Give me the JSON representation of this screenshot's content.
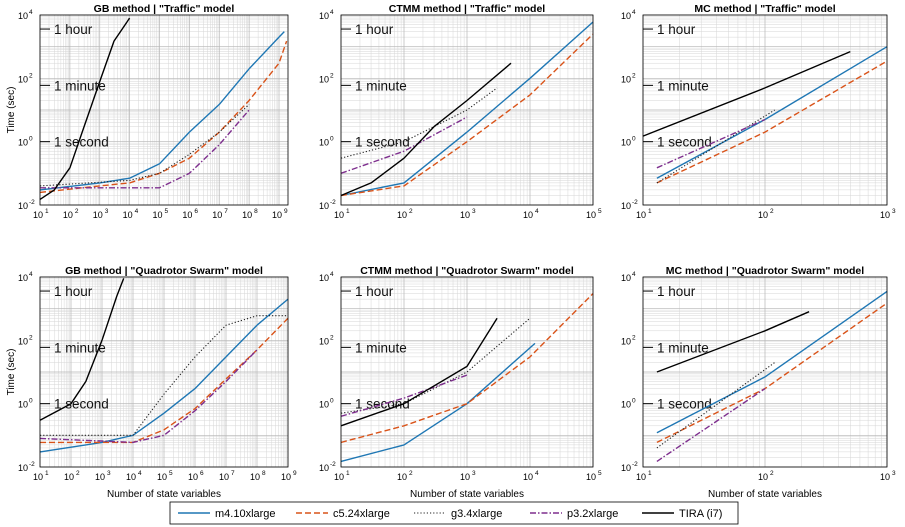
{
  "series_styles": [
    {
      "name": "m4.10xlarge",
      "color": "#1f77b4",
      "dash": "",
      "width": 1.4
    },
    {
      "name": "c5.24xlarge",
      "color": "#d95319",
      "dash": "6,3",
      "width": 1.4
    },
    {
      "name": "g3.4xlarge",
      "color": "#222222",
      "dash": "1.2,2",
      "width": 1.1
    },
    {
      "name": "p3.2xlarge",
      "color": "#7e2f8e",
      "dash": "6,2,1.5,2",
      "width": 1.4
    },
    {
      "name": "TIRA (i7)",
      "color": "#000000",
      "dash": "",
      "width": 1.4
    }
  ],
  "time_annotations": [
    "1 hour",
    "1 minute",
    "1 second"
  ],
  "chart_data": [
    {
      "type": "line",
      "title": "GB method | \"Traffic\" model",
      "xlabel": "",
      "ylabel": "Time (sec)",
      "xscale": "log",
      "yscale": "log",
      "xlim": [
        10,
        2000000000
      ],
      "ylim": [
        0.01,
        10000
      ],
      "grid": true,
      "series": [
        {
          "name": "m4.10xlarge",
          "x": [
            10,
            1000,
            10000,
            100000,
            1000000,
            10000000,
            100000000,
            1000000000,
            1500000000
          ],
          "y": [
            0.03,
            0.05,
            0.07,
            0.2,
            2,
            15,
            200,
            2000,
            3000
          ]
        },
        {
          "name": "c5.24xlarge",
          "x": [
            10,
            1000,
            10000,
            100000,
            1000000,
            10000000,
            100000000,
            1000000000,
            1800000000
          ],
          "y": [
            0.025,
            0.04,
            0.05,
            0.1,
            0.3,
            2,
            20,
            300,
            1500
          ]
        },
        {
          "name": "g3.4xlarge",
          "x": [
            10,
            10000,
            100000,
            1000000,
            10000000,
            100000000
          ],
          "y": [
            0.04,
            0.06,
            0.1,
            0.4,
            2,
            15
          ]
        },
        {
          "name": "p3.2xlarge",
          "x": [
            10,
            10000,
            100000,
            1000000,
            10000000,
            100000000
          ],
          "y": [
            0.035,
            0.035,
            0.035,
            0.1,
            0.8,
            10
          ]
        },
        {
          "name": "TIRA (i7)",
          "x": [
            10,
            30,
            100,
            300,
            1000,
            3000,
            10000
          ],
          "y": [
            0.015,
            0.03,
            0.15,
            3,
            80,
            1500,
            8000
          ]
        }
      ]
    },
    {
      "type": "line",
      "title": "CTMM method | \"Traffic\" model",
      "xlabel": "",
      "ylabel": "",
      "xscale": "log",
      "yscale": "log",
      "xlim": [
        10,
        100000
      ],
      "ylim": [
        0.01,
        10000
      ],
      "grid": true,
      "series": [
        {
          "name": "m4.10xlarge",
          "x": [
            10,
            100,
            1000,
            10000,
            100000
          ],
          "y": [
            0.02,
            0.05,
            2,
            100,
            6000
          ]
        },
        {
          "name": "c5.24xlarge",
          "x": [
            10,
            100,
            1000,
            10000,
            100000
          ],
          "y": [
            0.02,
            0.04,
            1,
            30,
            2500
          ]
        },
        {
          "name": "g3.4xlarge",
          "x": [
            10,
            100,
            1000,
            3000
          ],
          "y": [
            0.3,
            1,
            10,
            50
          ]
        },
        {
          "name": "p3.2xlarge",
          "x": [
            10,
            100,
            1000
          ],
          "y": [
            0.1,
            0.5,
            6
          ]
        },
        {
          "name": "TIRA (i7)",
          "x": [
            10,
            30,
            100,
            300,
            1000,
            5000
          ],
          "y": [
            0.02,
            0.05,
            0.3,
            3,
            20,
            300
          ]
        }
      ]
    },
    {
      "type": "line",
      "title": "MC method | \"Traffic\" model",
      "xlabel": "",
      "ylabel": "",
      "xscale": "log",
      "yscale": "log",
      "xlim": [
        10,
        1000
      ],
      "ylim": [
        0.01,
        10000
      ],
      "grid": true,
      "series": [
        {
          "name": "m4.10xlarge",
          "x": [
            13,
            100,
            1000
          ],
          "y": [
            0.07,
            5,
            1000
          ]
        },
        {
          "name": "c5.24xlarge",
          "x": [
            13,
            100,
            1000
          ],
          "y": [
            0.05,
            2,
            350
          ]
        },
        {
          "name": "g3.4xlarge",
          "x": [
            13,
            120
          ],
          "y": [
            0.05,
            10
          ]
        },
        {
          "name": "p3.2xlarge",
          "x": [
            13,
            100
          ],
          "y": [
            0.15,
            5
          ]
        },
        {
          "name": "TIRA (i7)",
          "x": [
            10,
            100,
            500
          ],
          "y": [
            1.5,
            50,
            700
          ]
        }
      ]
    },
    {
      "type": "line",
      "title": "GB method | \"Quadrotor Swarm\" model",
      "xlabel": "Number of state variables",
      "ylabel": "Time (sec)",
      "xscale": "log",
      "yscale": "log",
      "xlim": [
        10,
        1000000000
      ],
      "ylim": [
        0.01,
        10000
      ],
      "grid": true,
      "series": [
        {
          "name": "m4.10xlarge",
          "x": [
            10,
            1000,
            10000,
            100000,
            1000000,
            10000000,
            100000000,
            1000000000
          ],
          "y": [
            0.03,
            0.06,
            0.1,
            0.5,
            3,
            30,
            300,
            2000
          ]
        },
        {
          "name": "c5.24xlarge",
          "x": [
            10,
            1000,
            10000,
            100000,
            1000000,
            10000000,
            100000000,
            1000000000
          ],
          "y": [
            0.06,
            0.06,
            0.06,
            0.15,
            0.7,
            6,
            50,
            500
          ]
        },
        {
          "name": "g3.4xlarge",
          "x": [
            10,
            10000,
            100000,
            1000000,
            10000000,
            100000000,
            1000000000
          ],
          "y": [
            0.1,
            0.1,
            2,
            30,
            300,
            600,
            600
          ]
        },
        {
          "name": "p3.2xlarge",
          "x": [
            10,
            10000,
            100000,
            1000000,
            10000000,
            100000000
          ],
          "y": [
            0.08,
            0.06,
            0.1,
            0.6,
            5,
            50
          ]
        },
        {
          "name": "TIRA (i7)",
          "x": [
            10,
            100,
            300,
            1000,
            3000,
            5000
          ],
          "y": [
            0.3,
            1,
            5,
            100,
            2500,
            9000
          ]
        }
      ]
    },
    {
      "type": "line",
      "title": "CTMM method | \"Quadrotor Swarm\" model",
      "xlabel": "Number of state variables",
      "ylabel": "",
      "xscale": "log",
      "yscale": "log",
      "xlim": [
        10,
        100000
      ],
      "ylim": [
        0.01,
        10000
      ],
      "grid": true,
      "series": [
        {
          "name": "m4.10xlarge",
          "x": [
            10,
            100,
            1000,
            12000
          ],
          "y": [
            0.015,
            0.05,
            1,
            80
          ]
        },
        {
          "name": "c5.24xlarge",
          "x": [
            10,
            100,
            1000,
            10000,
            100000
          ],
          "y": [
            0.06,
            0.2,
            1,
            30,
            3000
          ]
        },
        {
          "name": "g3.4xlarge",
          "x": [
            10,
            100,
            1000,
            10000
          ],
          "y": [
            0.5,
            1,
            10,
            500
          ]
        },
        {
          "name": "p3.2xlarge",
          "x": [
            10,
            100,
            1000
          ],
          "y": [
            0.4,
            1.5,
            8
          ]
        },
        {
          "name": "TIRA (i7)",
          "x": [
            10,
            100,
            1000,
            3000
          ],
          "y": [
            0.2,
            1,
            15,
            500
          ]
        }
      ]
    },
    {
      "type": "line",
      "title": "MC method | \"Quadrotor Swarm\" model",
      "xlabel": "Number of state variables",
      "ylabel": "",
      "xscale": "log",
      "yscale": "log",
      "xlim": [
        10,
        1000
      ],
      "ylim": [
        0.01,
        10000
      ],
      "grid": true,
      "series": [
        {
          "name": "m4.10xlarge",
          "x": [
            13,
            100,
            1000
          ],
          "y": [
            0.12,
            7,
            3500
          ]
        },
        {
          "name": "c5.24xlarge",
          "x": [
            13,
            100,
            1000
          ],
          "y": [
            0.06,
            3,
            1500
          ]
        },
        {
          "name": "g3.4xlarge",
          "x": [
            13,
            120
          ],
          "y": [
            0.04,
            20
          ]
        },
        {
          "name": "p3.2xlarge",
          "x": [
            13,
            100
          ],
          "y": [
            0.015,
            3
          ]
        },
        {
          "name": "TIRA (i7)",
          "x": [
            13,
            100,
            230
          ],
          "y": [
            10,
            200,
            800
          ]
        }
      ]
    }
  ]
}
